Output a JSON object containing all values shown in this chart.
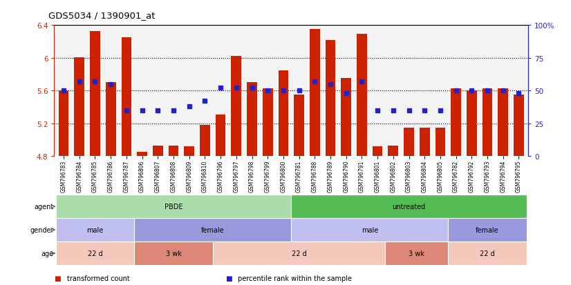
{
  "title": "GDS5034 / 1390901_at",
  "samples": [
    "GSM796783",
    "GSM796784",
    "GSM796785",
    "GSM796786",
    "GSM796787",
    "GSM796806",
    "GSM796807",
    "GSM796808",
    "GSM796809",
    "GSM796810",
    "GSM796796",
    "GSM796797",
    "GSM796798",
    "GSM796799",
    "GSM796800",
    "GSM796781",
    "GSM796788",
    "GSM796789",
    "GSM796790",
    "GSM796791",
    "GSM796801",
    "GSM796802",
    "GSM796803",
    "GSM796804",
    "GSM796805",
    "GSM796782",
    "GSM796792",
    "GSM796793",
    "GSM796794",
    "GSM796795"
  ],
  "bar_values": [
    5.6,
    6.01,
    6.33,
    5.7,
    6.25,
    4.85,
    4.93,
    4.93,
    4.92,
    5.18,
    5.31,
    6.02,
    5.7,
    5.63,
    5.85,
    5.55,
    6.35,
    6.22,
    5.75,
    6.29,
    4.92,
    4.93,
    5.15,
    5.15,
    5.15,
    5.63,
    5.6,
    5.63,
    5.63,
    5.55
  ],
  "percentile_pct": [
    50,
    57,
    57,
    55,
    35,
    35,
    35,
    35,
    38,
    42,
    52,
    52,
    52,
    50,
    50,
    50,
    57,
    55,
    48,
    57,
    35,
    35,
    35,
    35,
    35,
    50,
    50,
    50,
    50,
    48
  ],
  "bar_color": "#cc2200",
  "dot_color": "#2222cc",
  "ylim_left": [
    4.8,
    6.4
  ],
  "ylim_right": [
    0,
    100
  ],
  "yticks_left": [
    4.8,
    5.2,
    5.6,
    6.0,
    6.4
  ],
  "yticks_right": [
    0,
    25,
    50,
    75,
    100
  ],
  "ytick_labels_left": [
    "4.8",
    "5.2",
    "5.6",
    "6",
    "6.4"
  ],
  "ytick_labels_right": [
    "0",
    "25",
    "50",
    "75",
    "100%"
  ],
  "hlines": [
    5.2,
    5.6,
    6.0
  ],
  "agent_groups": [
    {
      "label": "PBDE",
      "start": 0,
      "end": 15,
      "color": "#aaddaa"
    },
    {
      "label": "untreated",
      "start": 15,
      "end": 30,
      "color": "#55bb55"
    }
  ],
  "gender_groups": [
    {
      "label": "male",
      "start": 0,
      "end": 5,
      "color": "#c0c0f0"
    },
    {
      "label": "female",
      "start": 5,
      "end": 15,
      "color": "#9999dd"
    },
    {
      "label": "male",
      "start": 15,
      "end": 25,
      "color": "#c0c0f0"
    },
    {
      "label": "female",
      "start": 25,
      "end": 30,
      "color": "#9999dd"
    }
  ],
  "age_groups": [
    {
      "label": "22 d",
      "start": 0,
      "end": 5,
      "color": "#f5c8bc"
    },
    {
      "label": "3 wk",
      "start": 5,
      "end": 10,
      "color": "#dd8877"
    },
    {
      "label": "22 d",
      "start": 10,
      "end": 21,
      "color": "#f5c8bc"
    },
    {
      "label": "3 wk",
      "start": 21,
      "end": 25,
      "color": "#dd8877"
    },
    {
      "label": "22 d",
      "start": 25,
      "end": 30,
      "color": "#f5c8bc"
    }
  ],
  "legend_items": [
    {
      "label": "transformed count",
      "color": "#cc2200"
    },
    {
      "label": "percentile rank within the sample",
      "color": "#2222cc"
    }
  ],
  "plot_bg": "#f4f4f4",
  "label_col": "#444444"
}
